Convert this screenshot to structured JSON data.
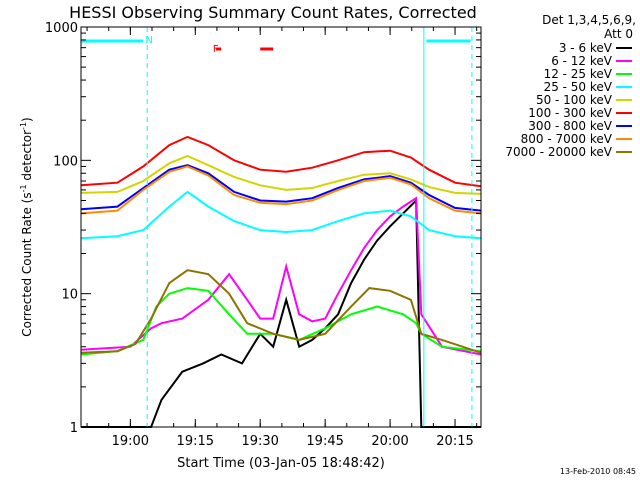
{
  "chart_data": {
    "type": "line",
    "title": "HESSI Observing Summary Count Rates, Corrected",
    "xlabel": "Start Time (03-Jan-05 18:48:42)",
    "ylabel_main": "Corrected Count Rate (s",
    "ylabel_sup1": "-1",
    "ylabel_mid": " detector",
    "ylabel_sup2": "-1",
    "ylabel_end": ")",
    "y_scale": "log",
    "ylim": [
      1,
      1000
    ],
    "xlim": [
      18.81,
      20.35
    ],
    "x_ticks": [
      {
        "x": 19.0,
        "label": "19:00"
      },
      {
        "x": 19.25,
        "label": "19:15"
      },
      {
        "x": 19.5,
        "label": "19:30"
      },
      {
        "x": 19.75,
        "label": "19:45"
      },
      {
        "x": 20.0,
        "label": "20:00"
      },
      {
        "x": 20.25,
        "label": "20:15"
      }
    ],
    "y_ticks": [
      {
        "y": 1,
        "label": "1"
      },
      {
        "y": 10,
        "label": "10"
      },
      {
        "y": 100,
        "label": "100"
      },
      {
        "y": 1000,
        "label": "1000"
      }
    ],
    "legend_header": [
      "Det 1,3,4,5,6,9,",
      "Att 0"
    ],
    "legend_placement": "right",
    "series": [
      {
        "name": "3 - 6 keV",
        "color": "#000000",
        "points": [
          [
            18.81,
            0.85
          ],
          [
            19.08,
            0.85
          ],
          [
            19.12,
            1.6
          ],
          [
            19.2,
            2.6
          ],
          [
            19.28,
            3.0
          ],
          [
            19.35,
            3.5
          ],
          [
            19.43,
            3.0
          ],
          [
            19.5,
            5.0
          ],
          [
            19.55,
            4.0
          ],
          [
            19.6,
            9.0
          ],
          [
            19.65,
            4.0
          ],
          [
            19.7,
            4.5
          ],
          [
            19.75,
            5.5
          ],
          [
            19.8,
            7.0
          ],
          [
            19.85,
            12.0
          ],
          [
            19.9,
            18.0
          ],
          [
            19.95,
            25.0
          ],
          [
            20.0,
            32.0
          ],
          [
            20.05,
            40.0
          ],
          [
            20.1,
            50.0
          ],
          [
            20.12,
            0.85
          ],
          [
            20.35,
            0.85
          ]
        ]
      },
      {
        "name": "6 - 12 keV",
        "color": "#ff00ff",
        "points": [
          [
            18.81,
            3.8
          ],
          [
            19.0,
            4.0
          ],
          [
            19.08,
            5.5
          ],
          [
            19.12,
            6.0
          ],
          [
            19.2,
            6.5
          ],
          [
            19.3,
            9.0
          ],
          [
            19.38,
            14.0
          ],
          [
            19.45,
            9.0
          ],
          [
            19.5,
            6.5
          ],
          [
            19.55,
            6.5
          ],
          [
            19.6,
            16.0
          ],
          [
            19.65,
            7.0
          ],
          [
            19.7,
            6.2
          ],
          [
            19.75,
            6.5
          ],
          [
            19.8,
            10.0
          ],
          [
            19.85,
            15.0
          ],
          [
            19.9,
            22.0
          ],
          [
            19.95,
            30.0
          ],
          [
            20.0,
            38.0
          ],
          [
            20.05,
            45.0
          ],
          [
            20.1,
            52.0
          ],
          [
            20.12,
            7.0
          ],
          [
            20.2,
            4.0
          ],
          [
            20.35,
            3.5
          ]
        ]
      },
      {
        "name": "12 - 25 keV",
        "color": "#00ff00",
        "points": [
          [
            18.81,
            3.5
          ],
          [
            18.95,
            3.7
          ],
          [
            19.05,
            4.5
          ],
          [
            19.1,
            8.0
          ],
          [
            19.15,
            10.0
          ],
          [
            19.22,
            11.0
          ],
          [
            19.3,
            10.5
          ],
          [
            19.38,
            7.0
          ],
          [
            19.45,
            5.0
          ],
          [
            19.55,
            5.0
          ],
          [
            19.65,
            4.5
          ],
          [
            19.75,
            5.5
          ],
          [
            19.85,
            7.0
          ],
          [
            19.95,
            8.0
          ],
          [
            20.05,
            7.0
          ],
          [
            20.1,
            6.0
          ],
          [
            20.12,
            5.0
          ],
          [
            20.2,
            4.0
          ],
          [
            20.35,
            3.7
          ]
        ]
      },
      {
        "name": "25 - 50 keV",
        "color": "#00ffff",
        "points": [
          [
            18.81,
            26.0
          ],
          [
            18.95,
            27.0
          ],
          [
            19.05,
            30.0
          ],
          [
            19.15,
            45.0
          ],
          [
            19.22,
            58.0
          ],
          [
            19.3,
            45.0
          ],
          [
            19.4,
            35.0
          ],
          [
            19.5,
            30.0
          ],
          [
            19.6,
            29.0
          ],
          [
            19.7,
            30.0
          ],
          [
            19.8,
            35.0
          ],
          [
            19.9,
            40.0
          ],
          [
            20.0,
            42.0
          ],
          [
            20.08,
            38.0
          ],
          [
            20.15,
            30.0
          ],
          [
            20.25,
            27.0
          ],
          [
            20.35,
            26.0
          ]
        ]
      },
      {
        "name": "50 - 100 keV",
        "color": "#d4d400",
        "points": [
          [
            18.81,
            57.0
          ],
          [
            18.95,
            58.0
          ],
          [
            19.05,
            70.0
          ],
          [
            19.15,
            95.0
          ],
          [
            19.22,
            108.0
          ],
          [
            19.3,
            92.0
          ],
          [
            19.4,
            75.0
          ],
          [
            19.5,
            65.0
          ],
          [
            19.6,
            60.0
          ],
          [
            19.7,
            62.0
          ],
          [
            19.8,
            70.0
          ],
          [
            19.9,
            78.0
          ],
          [
            20.0,
            80.0
          ],
          [
            20.08,
            72.0
          ],
          [
            20.15,
            63.0
          ],
          [
            20.25,
            57.0
          ],
          [
            20.35,
            56.0
          ]
        ]
      },
      {
        "name": "100 - 300 keV",
        "color": "#ff0000",
        "points": [
          [
            18.81,
            65.0
          ],
          [
            18.95,
            68.0
          ],
          [
            19.05,
            90.0
          ],
          [
            19.15,
            130.0
          ],
          [
            19.22,
            150.0
          ],
          [
            19.3,
            130.0
          ],
          [
            19.4,
            100.0
          ],
          [
            19.5,
            85.0
          ],
          [
            19.6,
            82.0
          ],
          [
            19.7,
            88.0
          ],
          [
            19.8,
            100.0
          ],
          [
            19.9,
            115.0
          ],
          [
            20.0,
            118.0
          ],
          [
            20.08,
            105.0
          ],
          [
            20.15,
            85.0
          ],
          [
            20.25,
            68.0
          ],
          [
            20.35,
            64.0
          ]
        ]
      },
      {
        "name": "300 - 800 keV",
        "color": "#0000ff",
        "points": [
          [
            18.81,
            43.0
          ],
          [
            18.95,
            45.0
          ],
          [
            19.05,
            62.0
          ],
          [
            19.15,
            85.0
          ],
          [
            19.22,
            92.0
          ],
          [
            19.3,
            80.0
          ],
          [
            19.4,
            58.0
          ],
          [
            19.5,
            50.0
          ],
          [
            19.6,
            49.0
          ],
          [
            19.7,
            52.0
          ],
          [
            19.8,
            62.0
          ],
          [
            19.9,
            72.0
          ],
          [
            20.0,
            76.0
          ],
          [
            20.08,
            68.0
          ],
          [
            20.15,
            55.0
          ],
          [
            20.25,
            44.0
          ],
          [
            20.35,
            42.0
          ]
        ]
      },
      {
        "name": "800 - 7000 keV",
        "color": "#ff8c00",
        "points": [
          [
            18.81,
            40.0
          ],
          [
            18.95,
            42.0
          ],
          [
            19.05,
            60.0
          ],
          [
            19.15,
            82.0
          ],
          [
            19.22,
            90.0
          ],
          [
            19.3,
            77.0
          ],
          [
            19.4,
            55.0
          ],
          [
            19.5,
            48.0
          ],
          [
            19.6,
            47.0
          ],
          [
            19.7,
            50.0
          ],
          [
            19.8,
            60.0
          ],
          [
            19.9,
            70.0
          ],
          [
            20.0,
            74.0
          ],
          [
            20.08,
            66.0
          ],
          [
            20.15,
            52.0
          ],
          [
            20.25,
            42.0
          ],
          [
            20.35,
            40.0
          ]
        ]
      },
      {
        "name": "7000 - 20000 keV",
        "color": "#8b7500",
        "points": [
          [
            18.81,
            3.6
          ],
          [
            18.95,
            3.7
          ],
          [
            19.02,
            4.2
          ],
          [
            19.08,
            6.5
          ],
          [
            19.15,
            12.0
          ],
          [
            19.22,
            15.0
          ],
          [
            19.3,
            14.0
          ],
          [
            19.38,
            10.0
          ],
          [
            19.45,
            6.0
          ],
          [
            19.55,
            5.0
          ],
          [
            19.65,
            4.5
          ],
          [
            19.75,
            5.0
          ],
          [
            19.85,
            8.0
          ],
          [
            19.92,
            11.0
          ],
          [
            20.0,
            10.5
          ],
          [
            20.08,
            9.0
          ],
          [
            20.12,
            5.0
          ],
          [
            20.2,
            4.5
          ],
          [
            20.35,
            3.6
          ]
        ]
      }
    ],
    "annotations": [
      {
        "text": "N",
        "x": 19.05,
        "color": "#00ffff"
      },
      {
        "text": "F",
        "x": 19.31,
        "color": "#ff0000"
      }
    ],
    "night_segments": [
      [
        18.81,
        19.05
      ],
      [
        20.14,
        20.31
      ]
    ],
    "flare_segments": [
      [
        19.33,
        19.35
      ],
      [
        19.5,
        19.55
      ]
    ],
    "vertical_markers": [
      {
        "x": 19.065,
        "color": "#00ffff",
        "style": "dashed"
      },
      {
        "x": 20.13,
        "color": "#00ffff",
        "style": "solid"
      },
      {
        "x": 20.315,
        "color": "#00ffff",
        "style": "dashed"
      }
    ]
  },
  "footer_timestamp": "13-Feb-2010 08:45"
}
